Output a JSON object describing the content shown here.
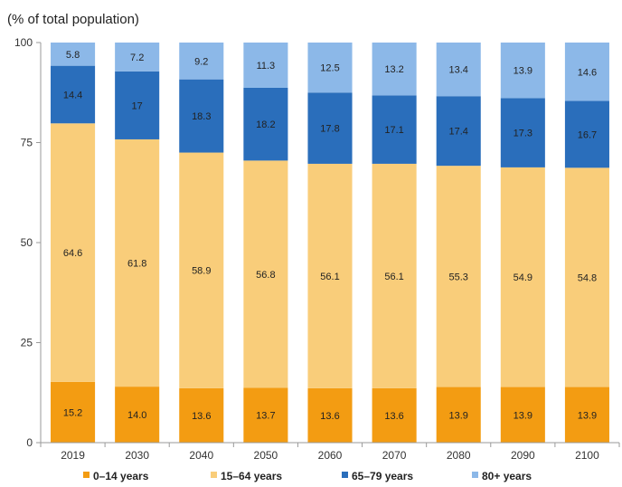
{
  "chart_data": {
    "type": "bar",
    "stacked": true,
    "ylabel": "(% of total population)",
    "ylim": [
      0,
      100
    ],
    "yticks": [
      "0",
      "25",
      "50",
      "75",
      "100"
    ],
    "grid": false,
    "legend_position": "bottom",
    "categories": [
      "2019",
      "2030",
      "2040",
      "2050",
      "2060",
      "2070",
      "2080",
      "2090",
      "2100"
    ],
    "series": [
      {
        "name": "0–14 years",
        "color": "#f39c12",
        "values": [
          15.2,
          14.0,
          13.6,
          13.7,
          13.6,
          13.6,
          13.9,
          13.9,
          13.9
        ],
        "labels": [
          "15.2",
          "14.0",
          "13.6",
          "13.7",
          "13.6",
          "13.6",
          "13.9",
          "13.9",
          "13.9"
        ]
      },
      {
        "name": "15–64 years",
        "color": "#f9cd7a",
        "values": [
          64.6,
          61.8,
          58.9,
          56.8,
          56.1,
          56.1,
          55.3,
          54.9,
          54.8
        ],
        "labels": [
          "64.6",
          "61.8",
          "58.9",
          "56.8",
          "56.1",
          "56.1",
          "55.3",
          "54.9",
          "54.8"
        ]
      },
      {
        "name": "65–79 years",
        "color": "#2a6ebb",
        "values": [
          14.4,
          17,
          18.3,
          18.2,
          17.8,
          17.1,
          17.4,
          17.3,
          16.7
        ],
        "labels": [
          "14.4",
          "17",
          "18.3",
          "18.2",
          "17.8",
          "17.1",
          "17.4",
          "17.3",
          "16.7"
        ]
      },
      {
        "name": "80+ years",
        "color": "#8cb8e8",
        "values": [
          5.8,
          7.2,
          9.2,
          11.3,
          12.5,
          13.2,
          13.4,
          13.9,
          14.6
        ],
        "labels": [
          "5.8",
          "7.2",
          "9.2",
          "11.3",
          "12.5",
          "13.2",
          "13.4",
          "13.9",
          "14.6"
        ]
      }
    ]
  }
}
